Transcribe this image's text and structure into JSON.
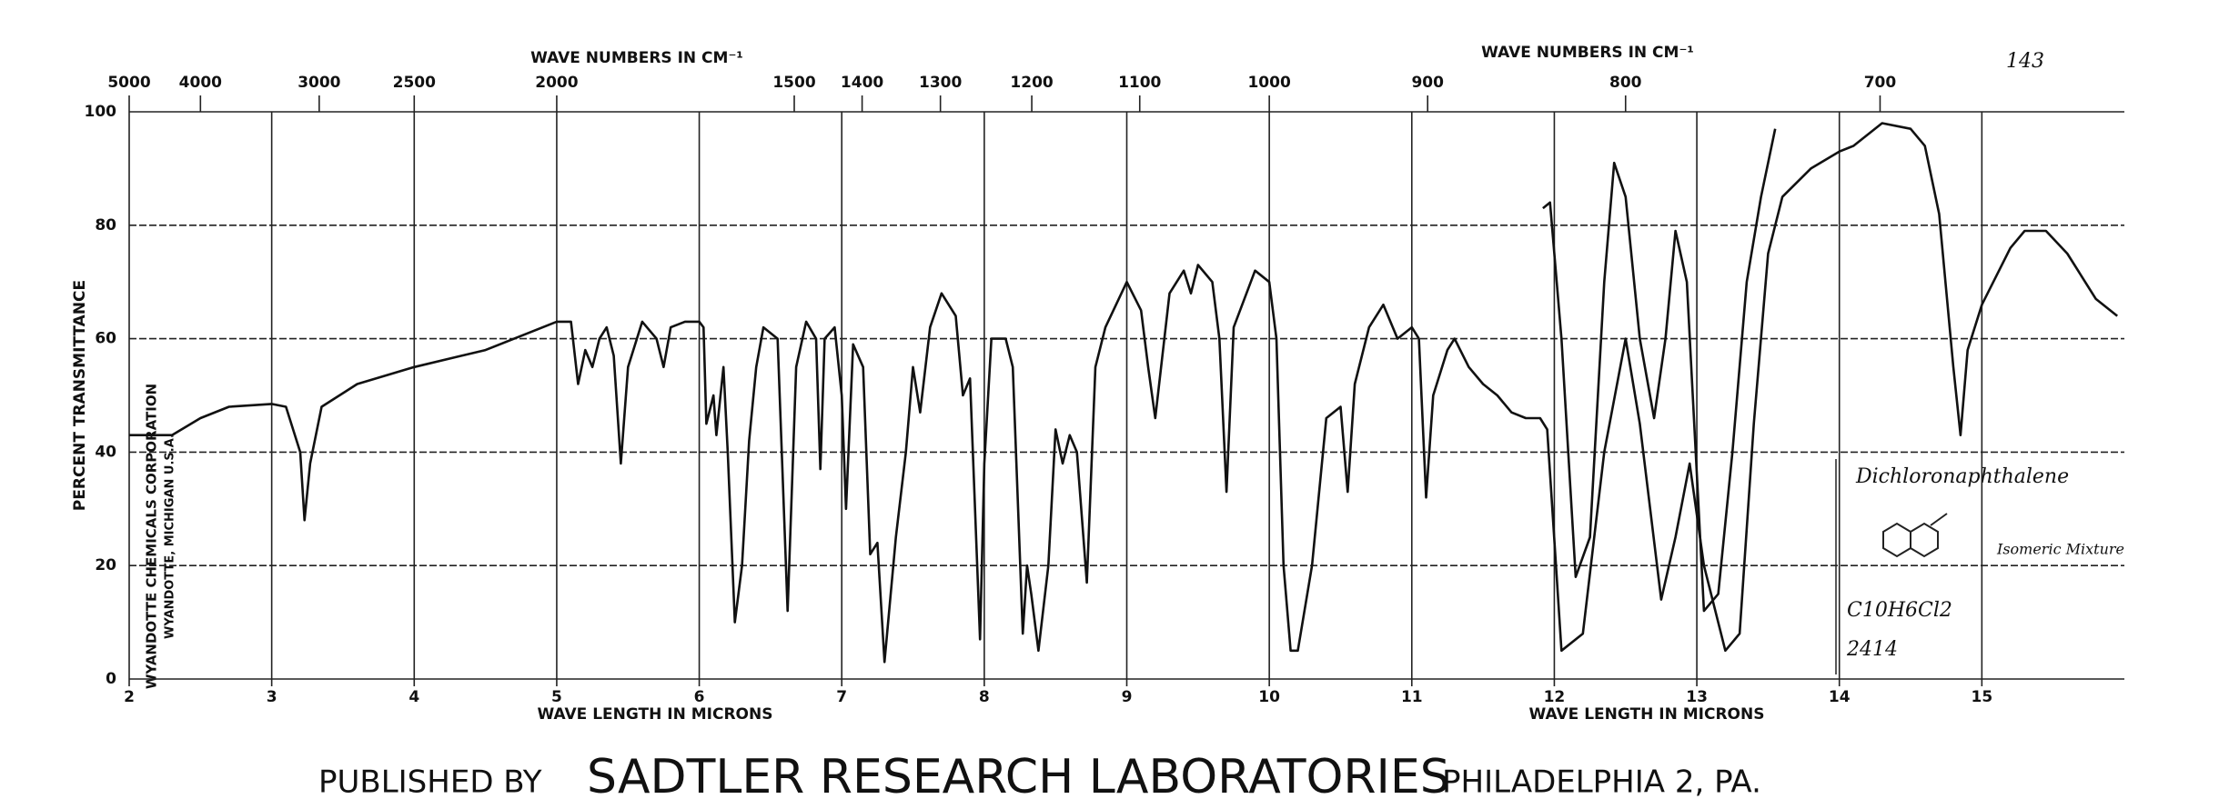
{
  "chart_data": {
    "type": "line",
    "x_label": "WAVE LENGTH IN MICRONS",
    "y_label": "PERCENT TRANSMITTANCE",
    "x2_label": "WAVE NUMBERS IN CM⁻¹",
    "xlim": [
      2,
      16
    ],
    "ylim": [
      0,
      100
    ],
    "xticks": [
      2,
      3,
      4,
      5,
      6,
      7,
      8,
      9,
      10,
      11,
      12,
      13,
      14,
      15
    ],
    "yticks": [
      0,
      20,
      40,
      60,
      80,
      100
    ],
    "x2ticks": [
      5000,
      4000,
      3000,
      2500,
      2000,
      1500,
      1400,
      1300,
      1200,
      1100,
      1000,
      900,
      800,
      700
    ],
    "grid": true,
    "series": [
      {
        "color": "#111111",
        "x": [
          2.0,
          2.3,
          2.5,
          2.7,
          3.0,
          3.1,
          3.2,
          3.23,
          3.27,
          3.35,
          3.6,
          4.0,
          4.5,
          5.0,
          5.1,
          5.15,
          5.2,
          5.25,
          5.3,
          5.35,
          5.4,
          5.45,
          5.5,
          5.6,
          5.7,
          5.75,
          5.8,
          5.9,
          6.0,
          6.03,
          6.05,
          6.1,
          6.12,
          6.17,
          6.2,
          6.25,
          6.3,
          6.35,
          6.4,
          6.45,
          6.55,
          6.62,
          6.68,
          6.75,
          6.82,
          6.85,
          6.88,
          6.95,
          7.0,
          7.03,
          7.08,
          7.15,
          7.2,
          7.25,
          7.3,
          7.38,
          7.45,
          7.5,
          7.55,
          7.62,
          7.7,
          7.8,
          7.85,
          7.9,
          7.97,
          8.0,
          8.05,
          8.15,
          8.2,
          8.27,
          8.3,
          8.33,
          8.38,
          8.45,
          8.5,
          8.55,
          8.6,
          8.65,
          8.72,
          8.78,
          8.85,
          9.0,
          9.1,
          9.15,
          9.2,
          9.3,
          9.4,
          9.45,
          9.5,
          9.6,
          9.65,
          9.7,
          9.75,
          9.9,
          10.0,
          10.05,
          10.1,
          10.15,
          10.2,
          10.3,
          10.4,
          10.5,
          10.55,
          10.6,
          10.7,
          10.8,
          10.9,
          11.0,
          11.05,
          11.1,
          11.15,
          11.25,
          11.3,
          11.4,
          11.5,
          11.6,
          11.7,
          11.8,
          11.9,
          11.95,
          12.05,
          12.2,
          12.35,
          12.5,
          12.6,
          12.75,
          12.85,
          12.95,
          13.05,
          13.2,
          13.3,
          13.4,
          13.5,
          13.6,
          13.8,
          14.0,
          14.1,
          14.3,
          14.5,
          14.6,
          14.7,
          14.8,
          14.85,
          14.9,
          15.0,
          15.2,
          15.3,
          15.45,
          15.6,
          15.8,
          15.95
        ],
        "values": [
          43,
          43,
          46,
          48,
          48.5,
          48,
          40,
          28,
          38,
          48,
          52,
          55,
          58,
          63,
          63,
          52,
          58,
          55,
          60,
          62,
          57,
          38,
          55,
          63,
          60,
          55,
          62,
          63,
          63,
          62,
          45,
          50,
          43,
          55,
          40,
          10,
          20,
          42,
          55,
          62,
          60,
          12,
          55,
          63,
          60,
          37,
          60,
          62,
          50,
          30,
          59,
          55,
          22,
          24,
          3,
          25,
          40,
          55,
          47,
          62,
          68,
          64,
          50,
          53,
          7,
          38,
          60,
          60,
          55,
          8,
          20,
          15,
          5,
          20,
          44,
          38,
          43,
          40,
          17,
          55,
          62,
          70,
          65,
          55,
          46,
          68,
          72,
          68,
          73,
          70,
          60,
          33,
          62,
          72,
          70,
          60,
          20,
          5,
          5,
          20,
          46,
          48,
          33,
          52,
          62,
          66,
          60,
          62,
          60,
          32,
          50,
          58,
          60,
          55,
          52,
          50,
          47,
          46,
          46,
          44,
          5,
          8,
          40,
          60,
          45,
          14,
          25,
          38,
          20,
          5,
          8,
          45,
          75,
          85,
          90,
          93,
          94,
          98,
          97,
          94,
          82,
          55,
          43,
          58,
          66,
          76,
          79,
          79,
          75,
          67,
          64
        ]
      },
      {
        "color": "#111111",
        "x": [
          11.92,
          11.97,
          12.05,
          12.15,
          12.25,
          12.35,
          12.42,
          12.5,
          12.6,
          12.7,
          12.78,
          12.85,
          12.93,
          13.05,
          13.15,
          13.25,
          13.35,
          13.45,
          13.55
        ],
        "values": [
          83,
          84,
          60,
          18,
          25,
          70,
          91,
          85,
          60,
          46,
          60,
          79,
          70,
          12,
          15,
          40,
          70,
          85,
          97
        ]
      }
    ],
    "annotations": {
      "page_number": "143",
      "compound": "Dichloronaphthalene",
      "note": "Isomeric Mixture",
      "formula": "C10H6Cl2",
      "number": "2414"
    },
    "sample_source": [
      "WYANDOTTE CHEMICALS CORPORATION",
      "WYANDOTTE, MICHIGAN U.S.A."
    ]
  },
  "footer": {
    "prefix": "PUBLISHED BY",
    "name": "SADTLER RESEARCH LABORATORIES",
    "suffix": "PHILADELPHIA 2, PA."
  }
}
